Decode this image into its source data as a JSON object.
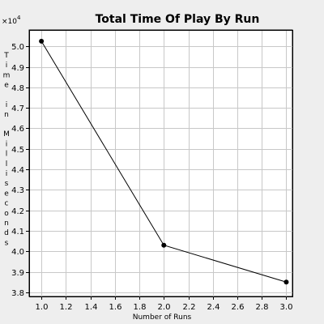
{
  "chart_data": {
    "type": "line",
    "title": "Total Time Of Play By Run",
    "xlabel": "Number of Runs",
    "ylabel": "Time in Milliseconds",
    "y_multiplier": "×10",
    "y_multiplier_exp": "4",
    "xlim": [
      0.9,
      3.05
    ],
    "ylim": [
      3.78,
      5.08
    ],
    "x_ticks": [
      1.0,
      1.2,
      1.4,
      1.6,
      1.8,
      2.0,
      2.2,
      2.4,
      2.6,
      2.8,
      3.0
    ],
    "y_ticks": [
      3.8,
      3.9,
      4.0,
      4.1,
      4.2,
      4.3,
      4.4,
      4.5,
      4.6,
      4.7,
      4.8,
      4.9,
      5.0
    ],
    "grid": true,
    "series": [
      {
        "x": [
          1.0,
          2.0,
          3.0
        ],
        "y": [
          5.025,
          4.03,
          3.85
        ]
      }
    ],
    "colors": {
      "line": "#000000",
      "grid": "#c8c8c8",
      "background": "#eeeeee"
    }
  }
}
